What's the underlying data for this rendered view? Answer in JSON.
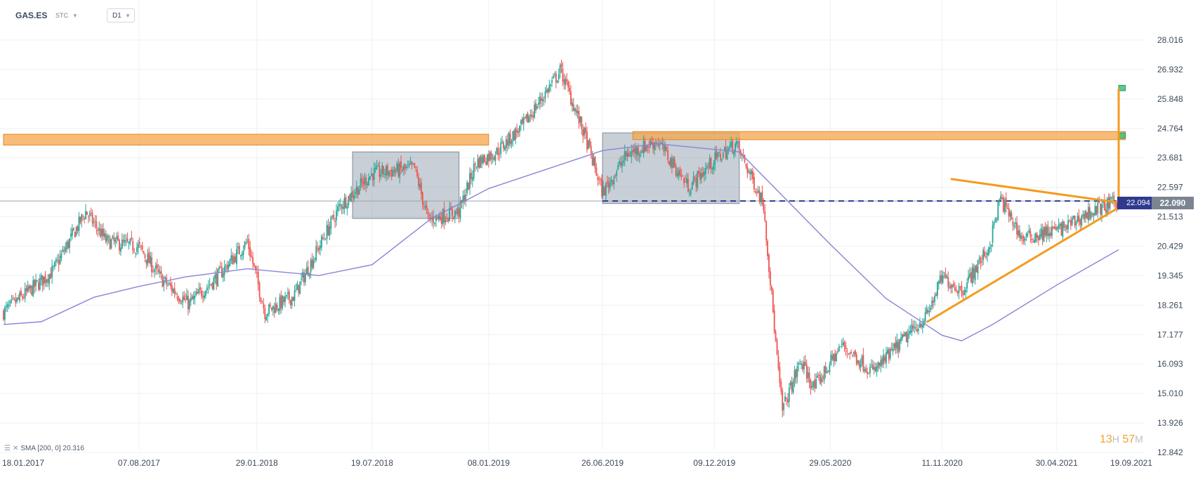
{
  "header": {
    "symbol": "GAS.ES",
    "market": "STC",
    "timeframe": "D1"
  },
  "indicator_legend": "SMA [200, 0] 20.316",
  "countdown": {
    "hours": "13",
    "hours_unit": "H",
    "minutes": "57",
    "minutes_unit": "M"
  },
  "price_tags": {
    "alert": "22.094",
    "last": "22.090"
  },
  "colors": {
    "up_candle": "#26a69a",
    "down_candle": "#ef5350",
    "sma": "#8a84d6",
    "zone_orange": "#f6a54a",
    "zone_green": "#3fbf7f",
    "trendline": "#f39c1e",
    "range_box": "#9ba8b5",
    "dashed_level": "#2f3a8f"
  },
  "chart_data": {
    "type": "candlestick",
    "xlabel": "",
    "ylabel": "",
    "x_ticks": [
      "18.01.2017",
      "07.08.2017",
      "29.01.2018",
      "19.07.2018",
      "08.01.2019",
      "26.06.2019",
      "09.12.2019",
      "29.05.2020",
      "11.11.2020",
      "30.04.2021",
      "19.09.2021"
    ],
    "y_ticks": [
      "28.016",
      "26.932",
      "25.848",
      "24.764",
      "23.681",
      "22.597",
      "21.513",
      "20.429",
      "19.345",
      "18.261",
      "17.177",
      "16.093",
      "15.010",
      "13.926",
      "12.842"
    ],
    "ylim": [
      12.842,
      28.016
    ],
    "xlim": [
      "2017-01-18",
      "2021-09-19"
    ],
    "price_anchors": [
      [
        "2017-01-18",
        18.0
      ],
      [
        "2017-04-01",
        19.5
      ],
      [
        "2017-05-20",
        21.7
      ],
      [
        "2017-06-20",
        20.6
      ],
      [
        "2017-08-07",
        20.4
      ],
      [
        "2017-09-10",
        19.2
      ],
      [
        "2017-10-20",
        18.3
      ],
      [
        "2017-12-01",
        19.3
      ],
      [
        "2018-01-15",
        20.6
      ],
      [
        "2018-02-10",
        18.0
      ],
      [
        "2018-03-25",
        18.6
      ],
      [
        "2018-06-01",
        21.9
      ],
      [
        "2018-07-19",
        23.1
      ],
      [
        "2018-09-20",
        23.3
      ],
      [
        "2018-10-10",
        21.4
      ],
      [
        "2018-11-25",
        21.7
      ],
      [
        "2018-12-20",
        23.5
      ],
      [
        "2019-01-20",
        23.9
      ],
      [
        "2019-03-01",
        24.9
      ],
      [
        "2019-04-25",
        26.9
      ],
      [
        "2019-06-01",
        24.4
      ],
      [
        "2019-06-26",
        22.4
      ],
      [
        "2019-08-01",
        23.8
      ],
      [
        "2019-09-15",
        24.3
      ],
      [
        "2019-11-01",
        22.6
      ],
      [
        "2019-12-09",
        23.6
      ],
      [
        "2020-01-10",
        24.2
      ],
      [
        "2020-02-20",
        22.0
      ],
      [
        "2020-03-12",
        16.0
      ],
      [
        "2020-03-19",
        14.4
      ],
      [
        "2020-04-15",
        16.2
      ],
      [
        "2020-05-05",
        15.2
      ],
      [
        "2020-06-15",
        16.8
      ],
      [
        "2020-08-01",
        15.8
      ],
      [
        "2020-09-15",
        17.0
      ],
      [
        "2020-10-20",
        17.9
      ],
      [
        "2020-11-11",
        19.3
      ],
      [
        "2020-12-10",
        18.8
      ],
      [
        "2021-01-20",
        20.4
      ],
      [
        "2021-02-05",
        22.2
      ],
      [
        "2021-03-10",
        20.7
      ],
      [
        "2021-05-10",
        21.1
      ],
      [
        "2021-06-20",
        21.7
      ],
      [
        "2021-07-31",
        22.09
      ]
    ],
    "sma_200": [
      [
        "2017-01-18",
        17.55
      ],
      [
        "2017-03-15",
        17.65
      ],
      [
        "2017-06-01",
        18.55
      ],
      [
        "2017-08-07",
        18.95
      ],
      [
        "2017-10-15",
        19.3
      ],
      [
        "2018-01-15",
        19.6
      ],
      [
        "2018-05-01",
        19.35
      ],
      [
        "2018-07-19",
        19.75
      ],
      [
        "2018-10-15",
        21.45
      ],
      [
        "2019-01-08",
        22.55
      ],
      [
        "2019-06-26",
        23.95
      ],
      [
        "2019-09-15",
        24.2
      ],
      [
        "2020-01-15",
        23.9
      ],
      [
        "2020-05-29",
        20.5
      ],
      [
        "2020-08-20",
        18.5
      ],
      [
        "2020-11-11",
        17.15
      ],
      [
        "2020-12-10",
        16.95
      ],
      [
        "2021-01-25",
        17.55
      ],
      [
        "2021-04-30",
        19.0
      ],
      [
        "2021-07-31",
        20.3
      ]
    ],
    "horizontal_line": 22.094,
    "zones": [
      {
        "kind": "resistance",
        "color": "orange",
        "from": "2017-01-18",
        "to": "2019-01-08",
        "low": 24.15,
        "high": 24.55
      },
      {
        "kind": "resistance",
        "color": "orange",
        "from": "2019-08-10",
        "to": "2021-08-10",
        "low": 24.35,
        "high": 24.65
      },
      {
        "kind": "target",
        "color": "green",
        "from": "2021-07-31",
        "to": "2021-08-10",
        "low": 24.4,
        "high": 24.6
      },
      {
        "kind": "target",
        "color": "green",
        "from": "2021-07-31",
        "to": "2021-08-10",
        "low": 26.15,
        "high": 26.35
      }
    ],
    "range_boxes": [
      {
        "from": "2018-06-20",
        "to": "2018-11-25",
        "low": 21.45,
        "high": 23.9
      },
      {
        "from": "2019-06-26",
        "to": "2020-01-15",
        "low": 22.0,
        "high": 24.6
      }
    ],
    "trendlines": [
      {
        "from": [
          "2020-11-25",
          22.9
        ],
        "to": [
          "2021-08-10",
          22.0
        ]
      },
      {
        "from": [
          "2020-10-20",
          17.65
        ],
        "to": [
          "2021-08-10",
          22.0
        ]
      },
      {
        "from": [
          "2021-07-31",
          22.2
        ],
        "to": [
          "2021-07-31",
          26.2
        ]
      }
    ],
    "last_price": 22.09,
    "sma_value": 20.316
  }
}
